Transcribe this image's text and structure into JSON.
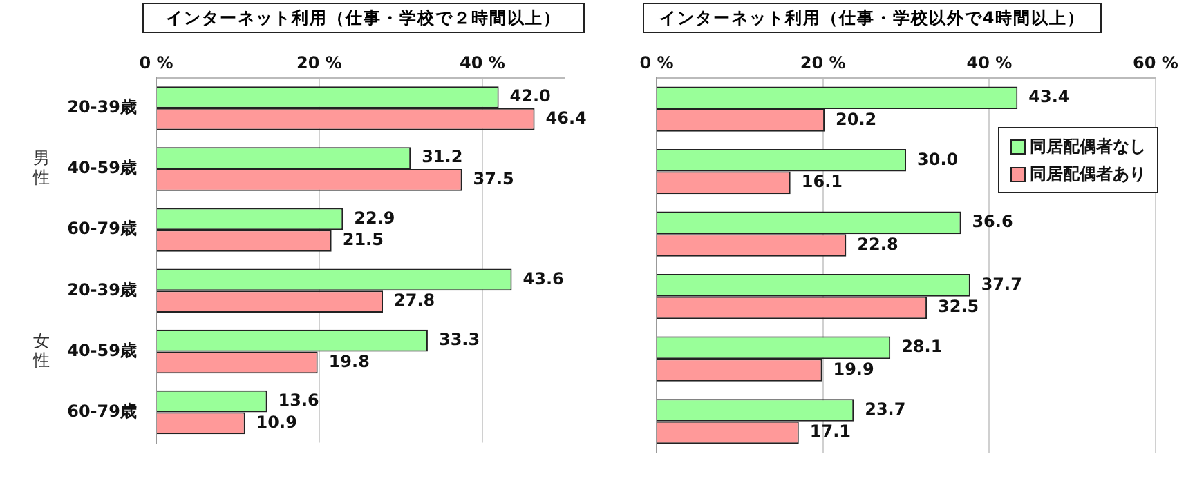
{
  "chart_data": [
    {
      "type": "bar",
      "orientation": "horizontal",
      "title": "インターネット利用（仕事・学校で２時間以上）",
      "categories": [
        "20-39歳",
        "40-59歳",
        "60-79歳",
        "20-39歳",
        "40-59歳",
        "60-79歳"
      ],
      "annotations": [
        "男性",
        "女性"
      ],
      "series": [
        {
          "color": "#99ff99",
          "values": [
            42.0,
            31.2,
            22.9,
            43.6,
            33.3,
            13.6
          ],
          "value_labels": [
            "42.0",
            "31.2",
            "22.9",
            "43.6",
            "33.3",
            "13.6"
          ]
        },
        {
          "color": "#ff9999",
          "values": [
            46.4,
            37.5,
            21.5,
            27.8,
            19.8,
            10.9
          ],
          "value_labels": [
            "46.4",
            "37.5",
            "21.5",
            "27.8",
            "19.8",
            "10.9"
          ]
        }
      ],
      "xlim": [
        0,
        50
      ],
      "xticks": [
        {
          "value": 0,
          "label": "0 %"
        },
        {
          "value": 20,
          "label": "20 %"
        },
        {
          "value": 40,
          "label": "40 %"
        }
      ],
      "grid": "x",
      "legend": false
    },
    {
      "type": "bar",
      "orientation": "horizontal",
      "title": "インターネット利用（仕事・学校以外で4時間以上）",
      "categories": [
        null,
        null,
        null,
        null,
        null,
        null
      ],
      "tick_labels": "x",
      "series": [
        {
          "name": "同居配偶者なし",
          "color": "#99ff99",
          "values": [
            43.4,
            30.0,
            36.6,
            37.7,
            28.1,
            23.7
          ],
          "value_labels": [
            "43.4",
            "30.0",
            "36.6",
            "37.7",
            "28.1",
            "23.7"
          ]
        },
        {
          "name": "同居配偶者あり",
          "color": "#ff9999",
          "values": [
            20.2,
            16.1,
            22.8,
            32.5,
            19.9,
            17.1
          ],
          "value_labels": [
            "20.2",
            "16.1",
            "22.8",
            "32.5",
            "19.9",
            "17.1"
          ]
        }
      ],
      "xlim": [
        0,
        60
      ],
      "xticks": [
        {
          "value": 0,
          "label": "0 %"
        },
        {
          "value": 20,
          "label": "20 %"
        },
        {
          "value": 40,
          "label": "40 %"
        },
        {
          "value": 60,
          "label": "60 %"
        }
      ],
      "grid": "x",
      "legend": "top right"
    }
  ]
}
